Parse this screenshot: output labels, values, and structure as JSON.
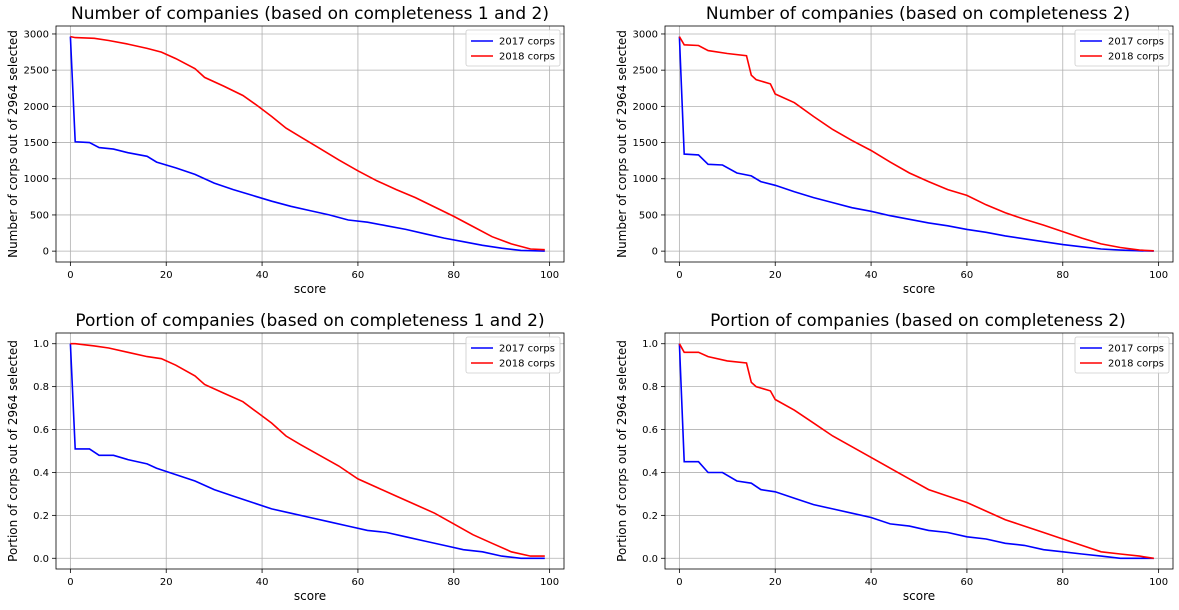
{
  "chart_data": [
    {
      "type": "line",
      "title": "Number of companies (based on completeness 1 and 2)",
      "xlabel": "score",
      "ylabel": "Number of corps out of 2964 selected",
      "xlim": [
        -3,
        103
      ],
      "ylim": [
        -150,
        3110
      ],
      "xticks": [
        0,
        20,
        40,
        60,
        80,
        100
      ],
      "yticks": [
        0,
        500,
        1000,
        1500,
        2000,
        2500,
        3000
      ],
      "grid": true,
      "legend": "top-right",
      "series": [
        {
          "name": "2017 corps",
          "color": "#0000ff",
          "x": [
            0,
            1,
            4,
            6,
            9,
            12,
            16,
            18,
            22,
            26,
            30,
            34,
            38,
            42,
            46,
            50,
            54,
            58,
            62,
            66,
            70,
            74,
            78,
            82,
            86,
            90,
            94,
            99
          ],
          "y": [
            2964,
            1510,
            1500,
            1430,
            1410,
            1360,
            1310,
            1230,
            1150,
            1060,
            940,
            850,
            770,
            690,
            620,
            560,
            500,
            430,
            400,
            350,
            300,
            240,
            180,
            130,
            80,
            40,
            10,
            0
          ]
        },
        {
          "name": "2018 corps",
          "color": "#ff0000",
          "x": [
            0,
            1,
            5,
            8,
            12,
            16,
            19,
            22,
            26,
            28,
            32,
            36,
            39,
            42,
            45,
            48,
            52,
            56,
            60,
            64,
            68,
            72,
            76,
            80,
            84,
            88,
            92,
            96,
            99
          ],
          "y": [
            2964,
            2950,
            2940,
            2910,
            2860,
            2800,
            2750,
            2660,
            2520,
            2400,
            2280,
            2150,
            2010,
            1860,
            1700,
            1580,
            1420,
            1260,
            1110,
            970,
            850,
            740,
            610,
            480,
            340,
            200,
            100,
            30,
            20
          ]
        }
      ]
    },
    {
      "type": "line",
      "title": "Number of companies (based on completeness 2)",
      "xlabel": "score",
      "ylabel": "Number of corps out of 2964 selected",
      "xlim": [
        -3,
        103
      ],
      "ylim": [
        -150,
        3110
      ],
      "xticks": [
        0,
        20,
        40,
        60,
        80,
        100
      ],
      "yticks": [
        0,
        500,
        1000,
        1500,
        2000,
        2500,
        3000
      ],
      "grid": true,
      "legend": "top-right",
      "series": [
        {
          "name": "2017 corps",
          "color": "#0000ff",
          "x": [
            0,
            1,
            4,
            6,
            9,
            12,
            15,
            17,
            20,
            24,
            28,
            32,
            36,
            40,
            44,
            48,
            52,
            56,
            60,
            64,
            68,
            72,
            76,
            80,
            84,
            88,
            92,
            96,
            99
          ],
          "y": [
            2964,
            1340,
            1330,
            1200,
            1190,
            1080,
            1040,
            960,
            910,
            820,
            740,
            670,
            600,
            550,
            490,
            440,
            390,
            350,
            300,
            260,
            210,
            170,
            130,
            90,
            60,
            30,
            15,
            5,
            0
          ]
        },
        {
          "name": "2018 corps",
          "color": "#ff0000",
          "x": [
            0,
            1,
            4,
            6,
            10,
            14,
            15,
            16,
            19,
            20,
            24,
            28,
            32,
            36,
            40,
            44,
            48,
            52,
            56,
            60,
            64,
            68,
            72,
            76,
            80,
            84,
            88,
            92,
            96,
            99
          ],
          "y": [
            2964,
            2850,
            2840,
            2770,
            2730,
            2700,
            2430,
            2370,
            2310,
            2170,
            2050,
            1860,
            1680,
            1530,
            1390,
            1230,
            1080,
            960,
            850,
            770,
            640,
            530,
            440,
            360,
            270,
            180,
            100,
            50,
            15,
            5
          ]
        }
      ]
    },
    {
      "type": "line",
      "title": "Portion of companies (based on completeness 1 and 2)",
      "xlabel": "score",
      "ylabel": "Portion of corps out of 2964 selected",
      "xlim": [
        -3,
        103
      ],
      "ylim": [
        -0.05,
        1.05
      ],
      "xticks": [
        0,
        20,
        40,
        60,
        80,
        100
      ],
      "yticks": [
        0.0,
        0.2,
        0.4,
        0.6,
        0.8,
        1.0
      ],
      "grid": true,
      "legend": "top-right",
      "series": [
        {
          "name": "2017 corps",
          "color": "#0000ff",
          "x": [
            0,
            1,
            4,
            6,
            9,
            12,
            16,
            18,
            22,
            26,
            30,
            34,
            38,
            42,
            46,
            50,
            54,
            58,
            62,
            66,
            70,
            74,
            78,
            82,
            86,
            90,
            94,
            99
          ],
          "y": [
            1.0,
            0.51,
            0.51,
            0.48,
            0.48,
            0.46,
            0.44,
            0.42,
            0.39,
            0.36,
            0.32,
            0.29,
            0.26,
            0.23,
            0.21,
            0.19,
            0.17,
            0.15,
            0.13,
            0.12,
            0.1,
            0.08,
            0.06,
            0.04,
            0.03,
            0.01,
            0.0,
            0.0
          ]
        },
        {
          "name": "2018 corps",
          "color": "#ff0000",
          "x": [
            0,
            1,
            5,
            8,
            12,
            16,
            19,
            22,
            26,
            28,
            32,
            36,
            39,
            42,
            45,
            48,
            52,
            56,
            60,
            64,
            68,
            72,
            76,
            80,
            84,
            88,
            92,
            96,
            99
          ],
          "y": [
            1.0,
            1.0,
            0.99,
            0.98,
            0.96,
            0.94,
            0.93,
            0.9,
            0.85,
            0.81,
            0.77,
            0.73,
            0.68,
            0.63,
            0.57,
            0.53,
            0.48,
            0.43,
            0.37,
            0.33,
            0.29,
            0.25,
            0.21,
            0.16,
            0.11,
            0.07,
            0.03,
            0.01,
            0.01
          ]
        }
      ]
    },
    {
      "type": "line",
      "title": "Portion of companies (based on completeness 2)",
      "xlabel": "score",
      "ylabel": "Portion of corps out of 2964 selected",
      "xlim": [
        -3,
        103
      ],
      "ylim": [
        -0.05,
        1.05
      ],
      "xticks": [
        0,
        20,
        40,
        60,
        80,
        100
      ],
      "yticks": [
        0.0,
        0.2,
        0.4,
        0.6,
        0.8,
        1.0
      ],
      "grid": true,
      "legend": "top-right",
      "series": [
        {
          "name": "2017 corps",
          "color": "#0000ff",
          "x": [
            0,
            1,
            4,
            6,
            9,
            12,
            15,
            17,
            20,
            24,
            28,
            32,
            36,
            40,
            44,
            48,
            52,
            56,
            60,
            64,
            68,
            72,
            76,
            80,
            84,
            88,
            92,
            96,
            99
          ],
          "y": [
            1.0,
            0.45,
            0.45,
            0.4,
            0.4,
            0.36,
            0.35,
            0.32,
            0.31,
            0.28,
            0.25,
            0.23,
            0.21,
            0.19,
            0.16,
            0.15,
            0.13,
            0.12,
            0.1,
            0.09,
            0.07,
            0.06,
            0.04,
            0.03,
            0.02,
            0.01,
            0.0,
            0.0,
            0.0
          ]
        },
        {
          "name": "2018 corps",
          "color": "#ff0000",
          "x": [
            0,
            1,
            4,
            6,
            10,
            14,
            15,
            16,
            19,
            20,
            24,
            28,
            32,
            36,
            40,
            44,
            48,
            52,
            56,
            60,
            64,
            68,
            72,
            76,
            80,
            84,
            88,
            92,
            96,
            99
          ],
          "y": [
            1.0,
            0.96,
            0.96,
            0.94,
            0.92,
            0.91,
            0.82,
            0.8,
            0.78,
            0.74,
            0.69,
            0.63,
            0.57,
            0.52,
            0.47,
            0.42,
            0.37,
            0.32,
            0.29,
            0.26,
            0.22,
            0.18,
            0.15,
            0.12,
            0.09,
            0.06,
            0.03,
            0.02,
            0.01,
            0.0
          ]
        }
      ]
    }
  ]
}
